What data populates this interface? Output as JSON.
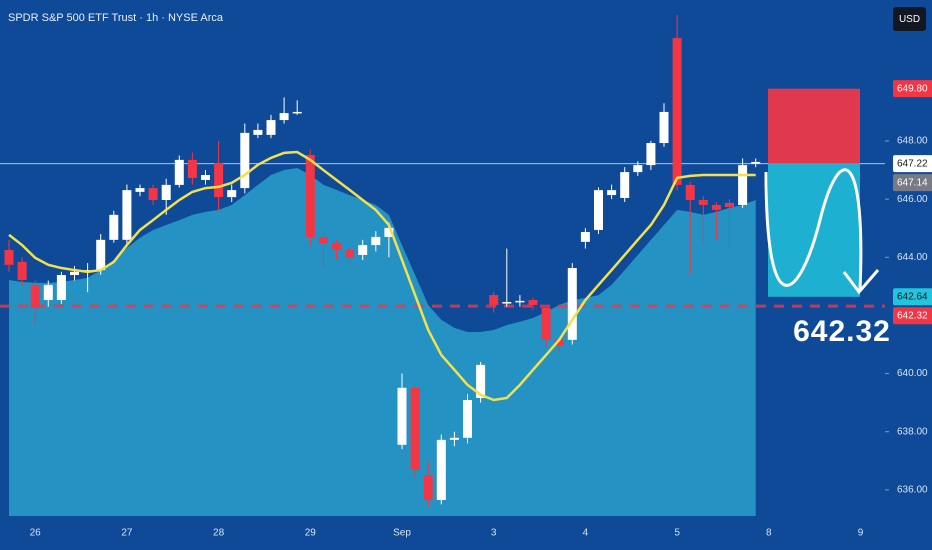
{
  "chart_data": {
    "type": "candlestick",
    "title": "SPDR S&P 500 ETF Trust · 1h · NYSE Arca",
    "currency": "USD",
    "background": "#0e4a98",
    "up_color": "#ffffff",
    "down_color": "#f23645",
    "categories": [
      null,
      null,
      "26",
      null,
      null,
      null,
      null,
      null,
      null,
      "27",
      null,
      null,
      null,
      null,
      null,
      null,
      "28",
      null,
      null,
      null,
      null,
      null,
      null,
      "29",
      null,
      null,
      null,
      null,
      null,
      null,
      "Sep",
      null,
      null,
      null,
      null,
      null,
      null,
      "3",
      null,
      null,
      null,
      null,
      null,
      null,
      "4",
      null,
      null,
      null,
      null,
      null,
      null,
      "5",
      null,
      null,
      null,
      null,
      null,
      null,
      "8",
      null,
      null,
      null,
      null,
      null,
      null,
      "9"
    ],
    "open": [
      644.25,
      643.84,
      643.05,
      642.53,
      642.53,
      643.39,
      643.5,
      643.56,
      644.6,
      644.6,
      646.25,
      646.38,
      645.97,
      646.49,
      647.35,
      646.66,
      647.24,
      646.07,
      646.38,
      648.21,
      648.21,
      648.72,
      648.96,
      647.52,
      644.7,
      644.49,
      644.25,
      644.08,
      644.42,
      644.7,
      637.55,
      639.51,
      636.51,
      635.65,
      637.72,
      637.79,
      639.16,
      642.7,
      642.43,
      642.46,
      642.53,
      642.26,
      641.16,
      641.16,
      644.53,
      644.94,
      646.14,
      646.04,
      646.93,
      647.17,
      647.93,
      651.54,
      646.49,
      645.97,
      645.8,
      645.87,
      645.8,
      647.22,
      null,
      null,
      null,
      null,
      null,
      null,
      null,
      null
    ],
    "high": [
      644.6,
      644.0,
      643.2,
      643.2,
      643.5,
      643.7,
      643.8,
      644.8,
      645.6,
      646.5,
      646.5,
      646.5,
      646.7,
      647.5,
      647.6,
      647.0,
      648.0,
      646.5,
      648.6,
      648.6,
      648.9,
      649.5,
      649.4,
      647.7,
      644.9,
      644.6,
      644.4,
      644.6,
      644.9,
      645.2,
      640.0,
      639.6,
      637.0,
      637.9,
      638.0,
      639.3,
      640.4,
      642.8,
      644.3,
      642.7,
      642.6,
      642.3,
      641.2,
      643.8,
      645.0,
      646.4,
      646.5,
      647.1,
      647.3,
      648.0,
      649.3,
      652.33,
      646.6,
      646.1,
      645.9,
      646.0,
      647.4,
      647.4,
      null,
      null,
      null,
      null,
      null,
      null,
      null,
      null
    ],
    "low": [
      643.5,
      643.0,
      641.67,
      642.3,
      642.4,
      643.2,
      642.8,
      643.4,
      644.5,
      644.4,
      646.1,
      645.8,
      645.46,
      646.4,
      646.5,
      646.5,
      645.6,
      645.9,
      646.2,
      648.1,
      648.1,
      648.6,
      648.9,
      644.4,
      643.6,
      643.9,
      643.7,
      643.9,
      644.2,
      644.0,
      637.4,
      636.4,
      635.4,
      635.5,
      637.5,
      637.6,
      639.0,
      642.1,
      642.3,
      642.3,
      642.2,
      640.9,
      640.7,
      641.0,
      644.3,
      644.8,
      646.0,
      645.9,
      646.8,
      647.0,
      647.8,
      646.3,
      643.4,
      644.5,
      644.6,
      644.3,
      645.7,
      647.1,
      null,
      null,
      null,
      null,
      null,
      null,
      null,
      null
    ],
    "close": [
      643.74,
      643.22,
      642.26,
      643.05,
      643.39,
      643.5,
      643.56,
      644.6,
      645.46,
      646.31,
      646.38,
      645.97,
      646.49,
      647.35,
      646.73,
      646.83,
      646.07,
      646.31,
      648.28,
      648.38,
      648.72,
      648.96,
      649.0,
      644.7,
      644.49,
      644.25,
      643.98,
      644.42,
      644.7,
      645.01,
      639.51,
      636.69,
      635.65,
      637.72,
      637.79,
      639.09,
      640.3,
      642.36,
      642.46,
      642.5,
      642.36,
      641.16,
      640.98,
      643.63,
      644.87,
      646.31,
      646.31,
      646.93,
      647.17,
      647.93,
      649.0,
      646.49,
      645.97,
      645.8,
      645.63,
      645.73,
      647.17,
      647.28,
      null,
      null,
      null,
      null,
      null,
      null,
      null,
      null
    ],
    "ma": {
      "color": "#f2e14c",
      "values": [
        644.77,
        644.42,
        643.98,
        643.74,
        643.63,
        643.56,
        643.5,
        643.56,
        643.84,
        644.42,
        644.94,
        645.28,
        645.63,
        645.97,
        646.25,
        646.38,
        646.42,
        646.56,
        646.83,
        647.18,
        647.42,
        647.59,
        647.62,
        647.35,
        647.0,
        646.66,
        646.32,
        645.97,
        645.63,
        645.11,
        643.91,
        642.7,
        641.5,
        640.64,
        640.13,
        639.61,
        639.27,
        639.09,
        639.16,
        639.61,
        640.13,
        640.64,
        641.16,
        641.85,
        642.53,
        643.05,
        643.56,
        644.08,
        644.6,
        645.11,
        645.8,
        646.73,
        646.8,
        646.83,
        646.83,
        646.83,
        646.83,
        646.83,
        null,
        null,
        null,
        null,
        null,
        null,
        null,
        null
      ]
    },
    "area": {
      "color": "#2493c4",
      "values": [
        643.22,
        643.15,
        643.12,
        643.12,
        643.15,
        643.22,
        643.29,
        643.56,
        643.91,
        644.32,
        644.67,
        644.94,
        645.11,
        645.28,
        645.46,
        645.56,
        645.63,
        645.8,
        646.14,
        646.49,
        646.83,
        647.0,
        647.07,
        646.83,
        646.49,
        646.32,
        646.14,
        645.97,
        645.8,
        645.46,
        644.42,
        643.39,
        642.36,
        641.85,
        641.57,
        641.43,
        641.43,
        641.5,
        641.67,
        641.78,
        641.91,
        642.12,
        642.36,
        642.53,
        642.6,
        642.7,
        643.05,
        643.56,
        644.08,
        644.6,
        645.11,
        645.63,
        645.56,
        645.46,
        645.56,
        645.7,
        645.8,
        645.97,
        null,
        null,
        null,
        null,
        null,
        null,
        null,
        null
      ]
    },
    "ylim": [
      635.1,
      652.85
    ],
    "yticks": [
      {
        "value": 636,
        "label": "636.00"
      },
      {
        "value": 638,
        "label": "638.00"
      },
      {
        "value": 640,
        "label": "640.00"
      },
      {
        "value": 644,
        "label": "644.00"
      },
      {
        "value": 646,
        "label": "646.00"
      },
      {
        "value": 648,
        "label": "648.00"
      }
    ],
    "price_labels": [
      {
        "value": 649.8,
        "label": "649.80",
        "color": "#f23645",
        "text_color": "#ffffff"
      },
      {
        "value": 647.22,
        "label": "647.22",
        "color": "#ffffff",
        "text_color": "#131722"
      },
      {
        "value": 647.14,
        "label": "647.14",
        "color": "#787b86",
        "text_color": "#ffffff"
      },
      {
        "value": 642.64,
        "label": "642.64",
        "color": "#22c5dd",
        "text_color": "#131722"
      },
      {
        "value": 642.32,
        "label": "642.32",
        "color": "#f23645",
        "text_color": "#ffffff"
      }
    ],
    "annotation": {
      "value": 642.32,
      "label": "642.32"
    }
  }
}
